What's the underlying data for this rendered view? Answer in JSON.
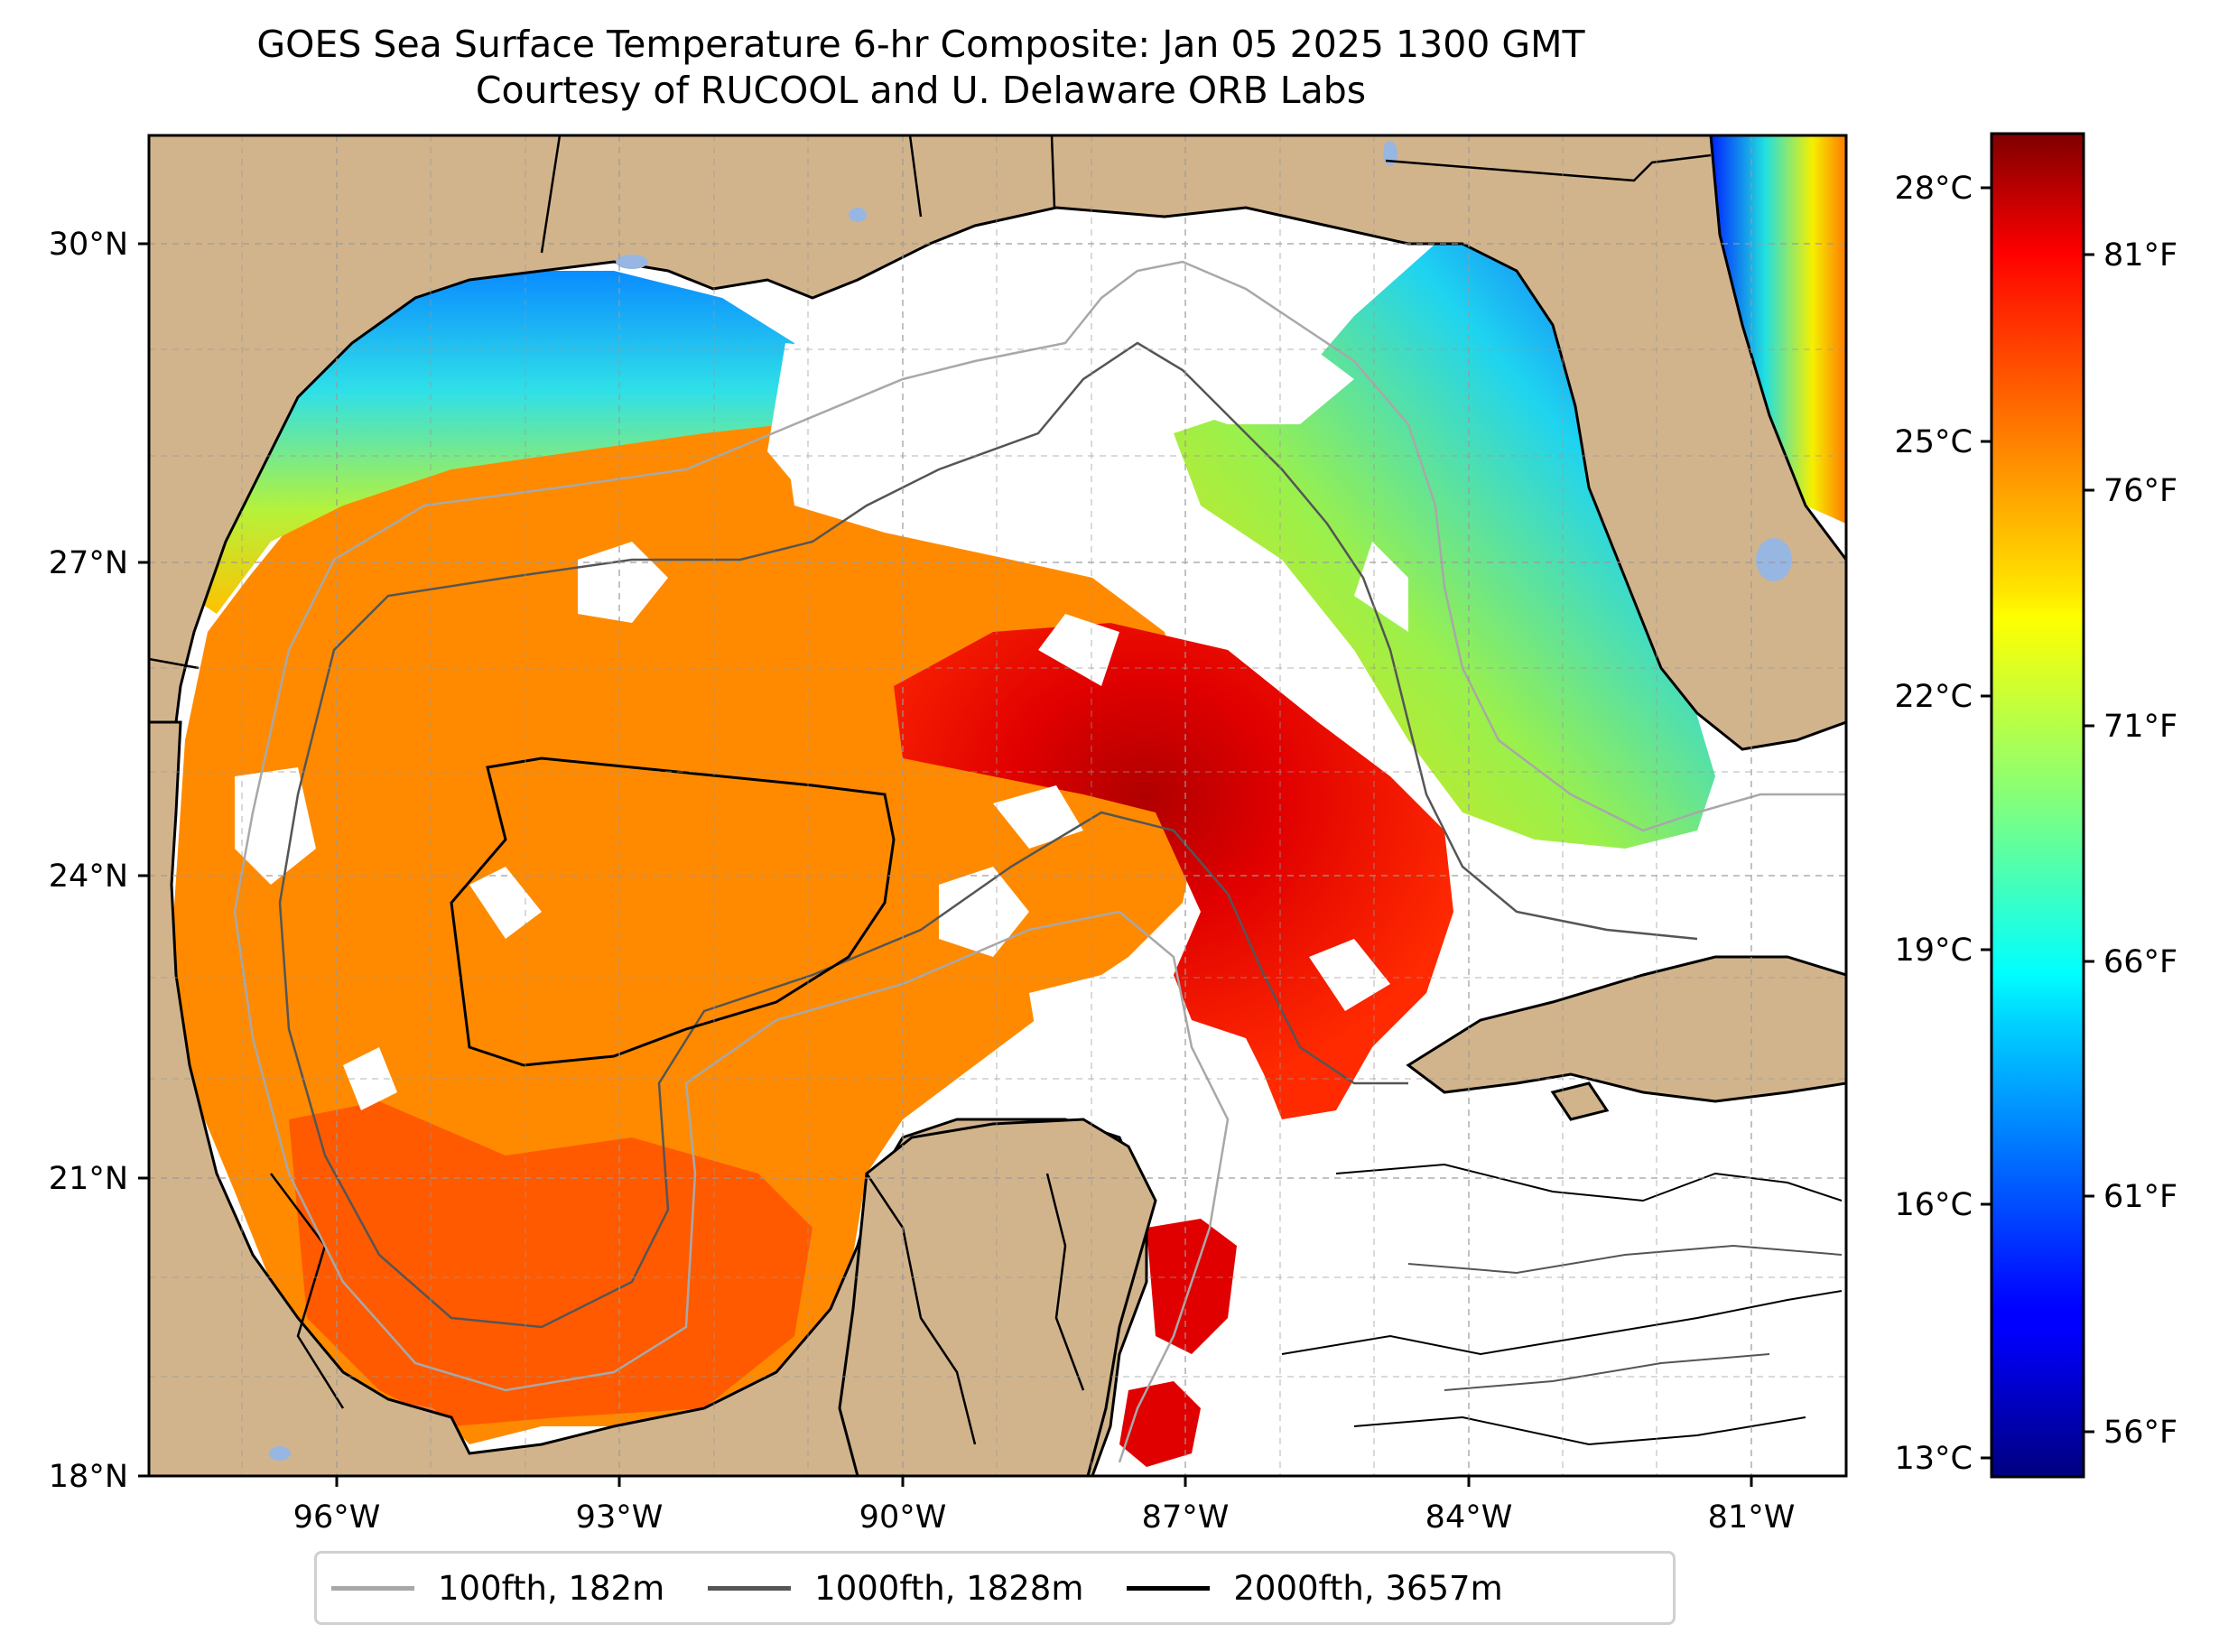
{
  "title": {
    "line1": "GOES Sea Surface Temperature 6-hr Composite: Jan 05 2025 1300 GMT",
    "line2": "Courtesy of RUCOOL and U. Delaware ORB Labs"
  },
  "map": {
    "lat_labels": [
      "30°N",
      "27°N",
      "24°N",
      "21°N",
      "18°N"
    ],
    "lon_labels": [
      "96°W",
      "93°W",
      "90°W",
      "87°W",
      "84°W",
      "81°W"
    ],
    "extent": {
      "lon_min": -98.0,
      "lon_max": -80.0,
      "lat_min": 18.0,
      "lat_max": 31.0
    },
    "colors": {
      "land": "#d2b48c",
      "no_data": "#ffffff",
      "lakes": "#97b6e2",
      "isobath_100": "#a8a8a8",
      "isobath_1000": "#555555",
      "isobath_2000": "#000000"
    }
  },
  "colorbar": {
    "celsius_labels": [
      "28°C",
      "25°C",
      "22°C",
      "19°C",
      "16°C",
      "13°C"
    ],
    "fahrenheit_labels": [
      "81°F",
      "76°F",
      "71°F",
      "66°F",
      "61°F",
      "56°F"
    ],
    "colormap": "jet",
    "range_f": [
      54,
      84
    ]
  },
  "legend": {
    "items": [
      {
        "label": "100fth, 182m",
        "color": "#a8a8a8"
      },
      {
        "label": "1000fth, 1828m",
        "color": "#555555"
      },
      {
        "label": "2000fth, 3657m",
        "color": "#000000"
      }
    ]
  }
}
